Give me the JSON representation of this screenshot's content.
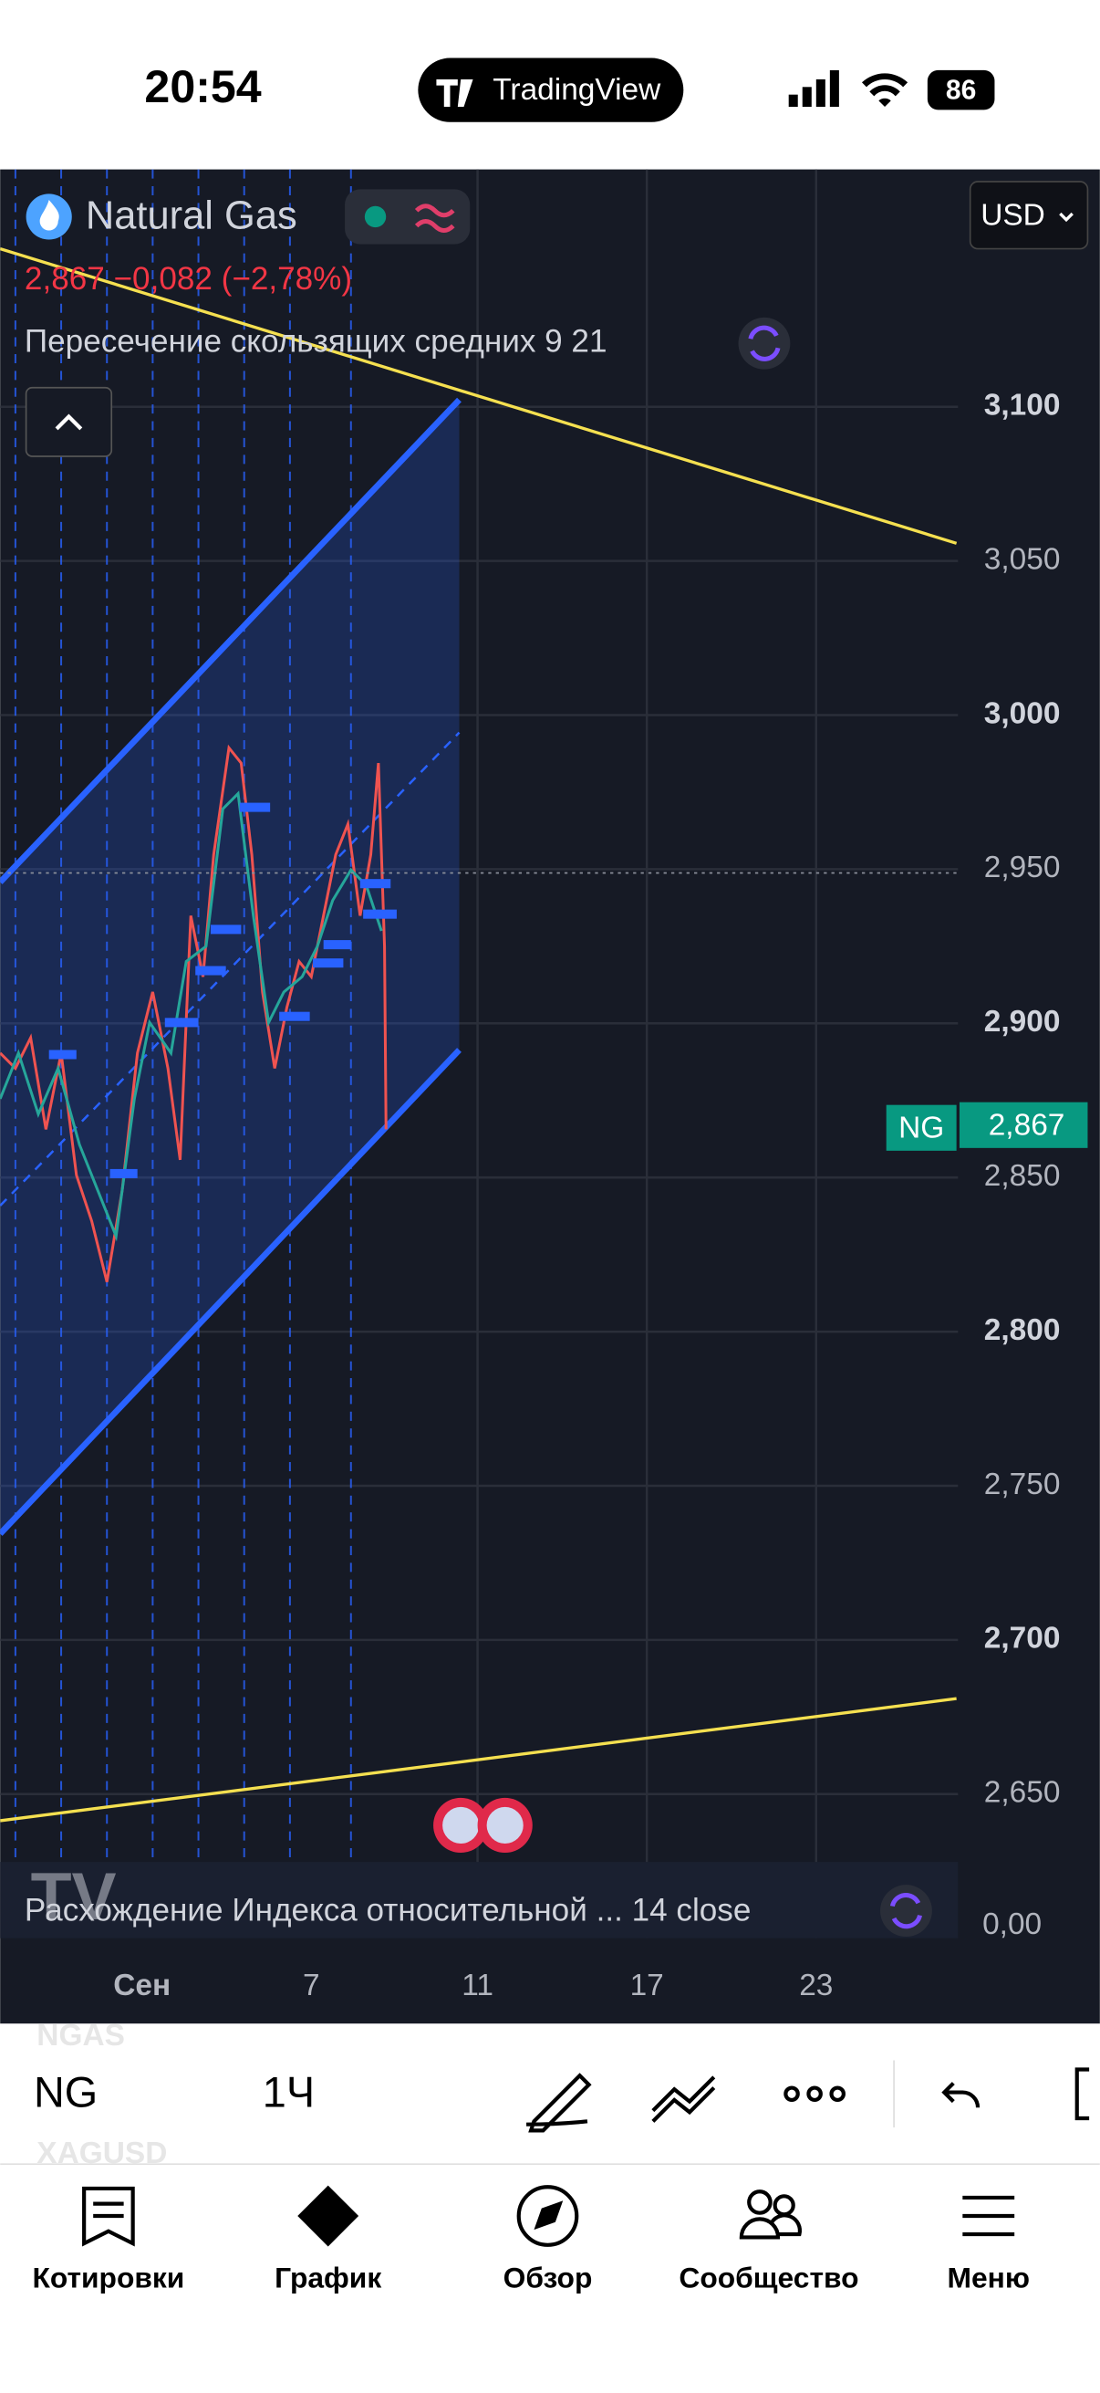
{
  "status_bar": {
    "time": "20:54",
    "app": "TradingView",
    "battery": "86"
  },
  "chart": {
    "symbol": "Natural Gas",
    "quote": "2,867 −0,082 (−2,78%)",
    "indicator": "Пересечение скользящих средних 9 21",
    "currency": "USD",
    "price_axis": {
      "ylim": [
        2.628,
        3.177
      ],
      "ticks": [
        {
          "value": 3.1,
          "label": "3,100"
        },
        {
          "value": 3.05,
          "label": "3,050"
        },
        {
          "value": 3.0,
          "label": "3,000"
        },
        {
          "value": 2.95,
          "label": "2,950"
        },
        {
          "value": 2.9,
          "label": "2,900"
        },
        {
          "value": 2.85,
          "label": "2,850"
        },
        {
          "value": 2.8,
          "label": "2,800"
        },
        {
          "value": 2.75,
          "label": "2,750"
        },
        {
          "value": 2.7,
          "label": "2,700"
        },
        {
          "value": 2.65,
          "label": "2,650"
        }
      ]
    },
    "last_price": {
      "symbol": "NG",
      "value": 2.867,
      "label": "2,867"
    },
    "oscillator": {
      "name": "Расхождение Индекса относительной ...  14 close",
      "value_label": "0,00"
    },
    "time_axis": [
      "Сен",
      "7",
      "11",
      "17",
      "23"
    ],
    "watermark": [
      "NGAS",
      "XAGUSD"
    ]
  },
  "toolbar": {
    "symbol": "NG",
    "interval": "1Ч"
  },
  "tabs": [
    "Котировки",
    "График",
    "Обзор",
    "Сообщество",
    "Меню"
  ]
}
